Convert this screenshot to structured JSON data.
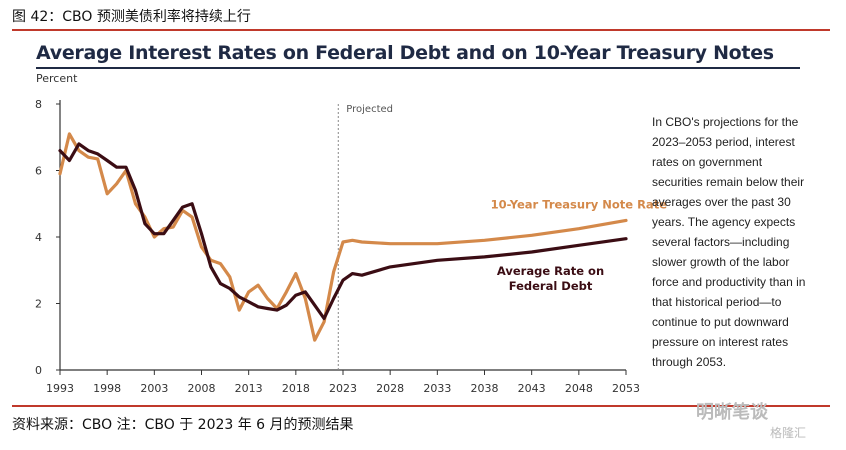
{
  "figure_caption": "图 42：CBO 预测美债利率将持续上行",
  "source_note": "资料来源：CBO 注：CBO 于 2023 年 6 月的预测结果",
  "watermark": {
    "logo": "明晰笔谈",
    "sub": "格隆汇"
  },
  "side_note": "In CBO's projections for the 2023–2053 period, interest rates on government securities remain below their averages over the past 30 years. The agency expects several factors—including slower growth of the labor force and productivity than in that historical period—to continue to put downward pressure on interest rates through 2053.",
  "colors": {
    "treasury": "#d4894a",
    "federal_debt": "#3b0d14",
    "axis": "#333333",
    "projection_line": "#888888"
  },
  "chart_data": {
    "type": "line",
    "title": "Average Interest Rates on Federal Debt and on 10-Year Treasury Notes",
    "ylabel": "Percent",
    "xlim": [
      1993,
      2053
    ],
    "ylim": [
      0,
      8
    ],
    "x_ticks": [
      1993,
      1998,
      2003,
      2008,
      2013,
      2018,
      2023,
      2028,
      2033,
      2038,
      2043,
      2048,
      2053
    ],
    "y_ticks": [
      0,
      2,
      4,
      6,
      8
    ],
    "projection_start": 2022.5,
    "projection_label": "Projected",
    "grid": false,
    "series": [
      {
        "name": "10-Year Treasury Note Rate",
        "color_key": "treasury",
        "label_anchor": [
          2048,
          4.85
        ],
        "points": [
          [
            1993,
            5.9
          ],
          [
            1994,
            7.1
          ],
          [
            1995,
            6.6
          ],
          [
            1996,
            6.4
          ],
          [
            1997,
            6.35
          ],
          [
            1998,
            5.3
          ],
          [
            1999,
            5.6
          ],
          [
            2000,
            6.0
          ],
          [
            2001,
            5.0
          ],
          [
            2002,
            4.6
          ],
          [
            2003,
            4.0
          ],
          [
            2004,
            4.25
          ],
          [
            2005,
            4.3
          ],
          [
            2006,
            4.8
          ],
          [
            2007,
            4.6
          ],
          [
            2008,
            3.7
          ],
          [
            2009,
            3.3
          ],
          [
            2010,
            3.2
          ],
          [
            2011,
            2.8
          ],
          [
            2012,
            1.8
          ],
          [
            2013,
            2.35
          ],
          [
            2014,
            2.55
          ],
          [
            2015,
            2.15
          ],
          [
            2016,
            1.85
          ],
          [
            2017,
            2.35
          ],
          [
            2018,
            2.9
          ],
          [
            2019,
            2.15
          ],
          [
            2020,
            0.9
          ],
          [
            2021,
            1.45
          ],
          [
            2022,
            2.95
          ],
          [
            2023,
            3.85
          ],
          [
            2024,
            3.9
          ],
          [
            2025,
            3.85
          ],
          [
            2028,
            3.8
          ],
          [
            2033,
            3.8
          ],
          [
            2038,
            3.9
          ],
          [
            2043,
            4.05
          ],
          [
            2048,
            4.25
          ],
          [
            2053,
            4.5
          ]
        ]
      },
      {
        "name": "Average Rate on Federal Debt",
        "color_key": "federal_debt",
        "label_anchor": [
          2045,
          2.85
        ],
        "points": [
          [
            1993,
            6.6
          ],
          [
            1994,
            6.3
          ],
          [
            1995,
            6.8
          ],
          [
            1996,
            6.6
          ],
          [
            1997,
            6.5
          ],
          [
            1998,
            6.3
          ],
          [
            1999,
            6.1
          ],
          [
            2000,
            6.1
          ],
          [
            2001,
            5.4
          ],
          [
            2002,
            4.4
          ],
          [
            2003,
            4.1
          ],
          [
            2004,
            4.1
          ],
          [
            2005,
            4.5
          ],
          [
            2006,
            4.9
          ],
          [
            2007,
            5.0
          ],
          [
            2008,
            4.1
          ],
          [
            2009,
            3.1
          ],
          [
            2010,
            2.6
          ],
          [
            2011,
            2.45
          ],
          [
            2012,
            2.2
          ],
          [
            2013,
            2.05
          ],
          [
            2014,
            1.9
          ],
          [
            2015,
            1.85
          ],
          [
            2016,
            1.8
          ],
          [
            2017,
            1.95
          ],
          [
            2018,
            2.25
          ],
          [
            2019,
            2.35
          ],
          [
            2020,
            1.95
          ],
          [
            2021,
            1.55
          ],
          [
            2022,
            2.15
          ],
          [
            2023,
            2.7
          ],
          [
            2024,
            2.9
          ],
          [
            2025,
            2.85
          ],
          [
            2028,
            3.1
          ],
          [
            2033,
            3.3
          ],
          [
            2038,
            3.4
          ],
          [
            2043,
            3.55
          ],
          [
            2048,
            3.75
          ],
          [
            2053,
            3.95
          ]
        ]
      }
    ]
  }
}
